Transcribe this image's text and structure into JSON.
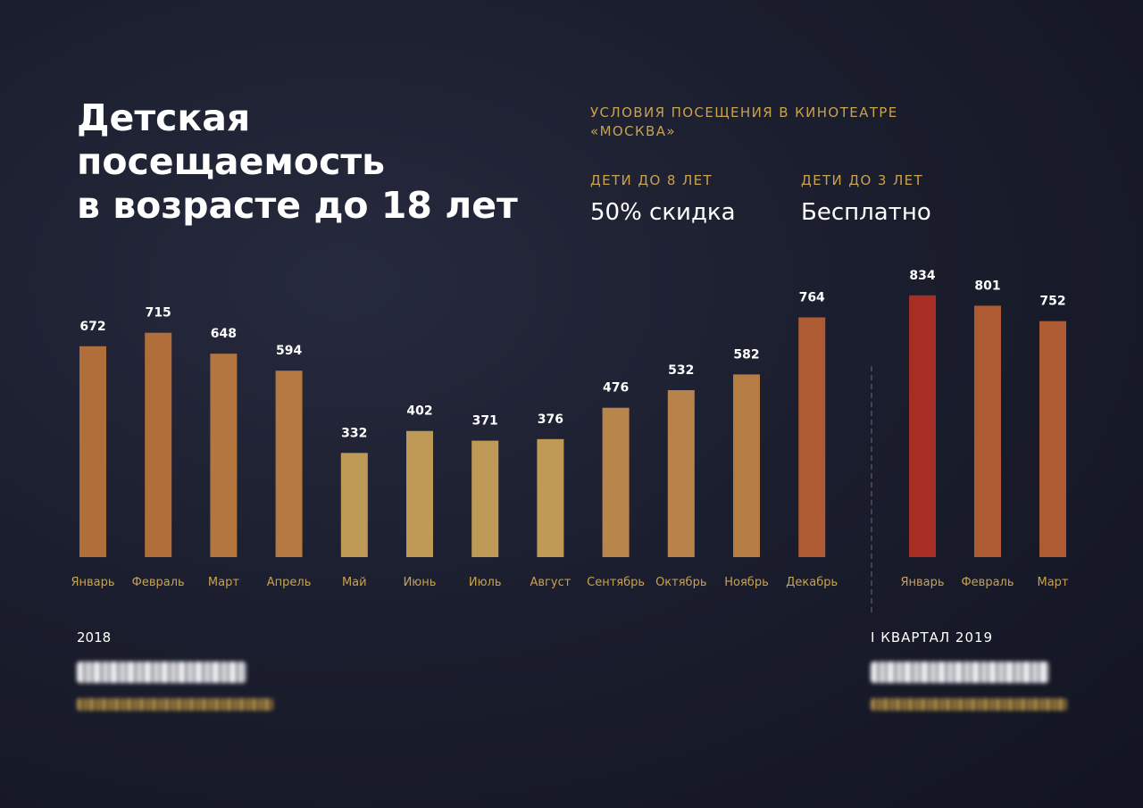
{
  "title_lines": [
    "Детская",
    "посещаемость",
    "в возрасте до 18 лет"
  ],
  "conditions": {
    "heading_lines": [
      "УСЛОВИЯ ПОСЕЩЕНИЯ В КИНОТЕАТРЕ",
      "«МОСКВА»"
    ],
    "items": [
      {
        "label": "ДЕТИ ДО 8 ЛЕТ",
        "value": "50% скидка"
      },
      {
        "label": "ДЕТИ ДО 3 ЛЕТ",
        "value": "Бесплатно"
      }
    ]
  },
  "footer": {
    "year_label": "2018",
    "quarter_label": "I КВАРТАЛ 2019"
  },
  "colors": {
    "accent": "#c9a24f",
    "divider": "#5a5d6e"
  },
  "chart_data": [
    {
      "type": "bar",
      "group_label": "2018",
      "categories": [
        "Январь",
        "Февраль",
        "Март",
        "Апрель",
        "Май",
        "Июнь",
        "Июль",
        "Август",
        "Сентябрь",
        "Октябрь",
        "Ноябрь",
        "Декабрь"
      ],
      "values": [
        672,
        715,
        648,
        594,
        332,
        402,
        371,
        376,
        476,
        532,
        582,
        764
      ],
      "colors": [
        "#b06e3a",
        "#b06e3a",
        "#b3763e",
        "#b37940",
        "#bf9a56",
        "#bf9a56",
        "#bf9a56",
        "#bf9a56",
        "#b8854a",
        "#b8834a",
        "#b57c44",
        "#ae5a32"
      ],
      "ylim": [
        0,
        900
      ],
      "grid": false
    },
    {
      "type": "bar",
      "group_label": "I КВАРТАЛ 2019",
      "categories": [
        "Январь",
        "Февраль",
        "Март"
      ],
      "values": [
        834,
        801,
        752
      ],
      "colors": [
        "#a72e24",
        "#ae5a32",
        "#ae5a32"
      ],
      "ylim": [
        0,
        900
      ],
      "grid": false
    }
  ]
}
